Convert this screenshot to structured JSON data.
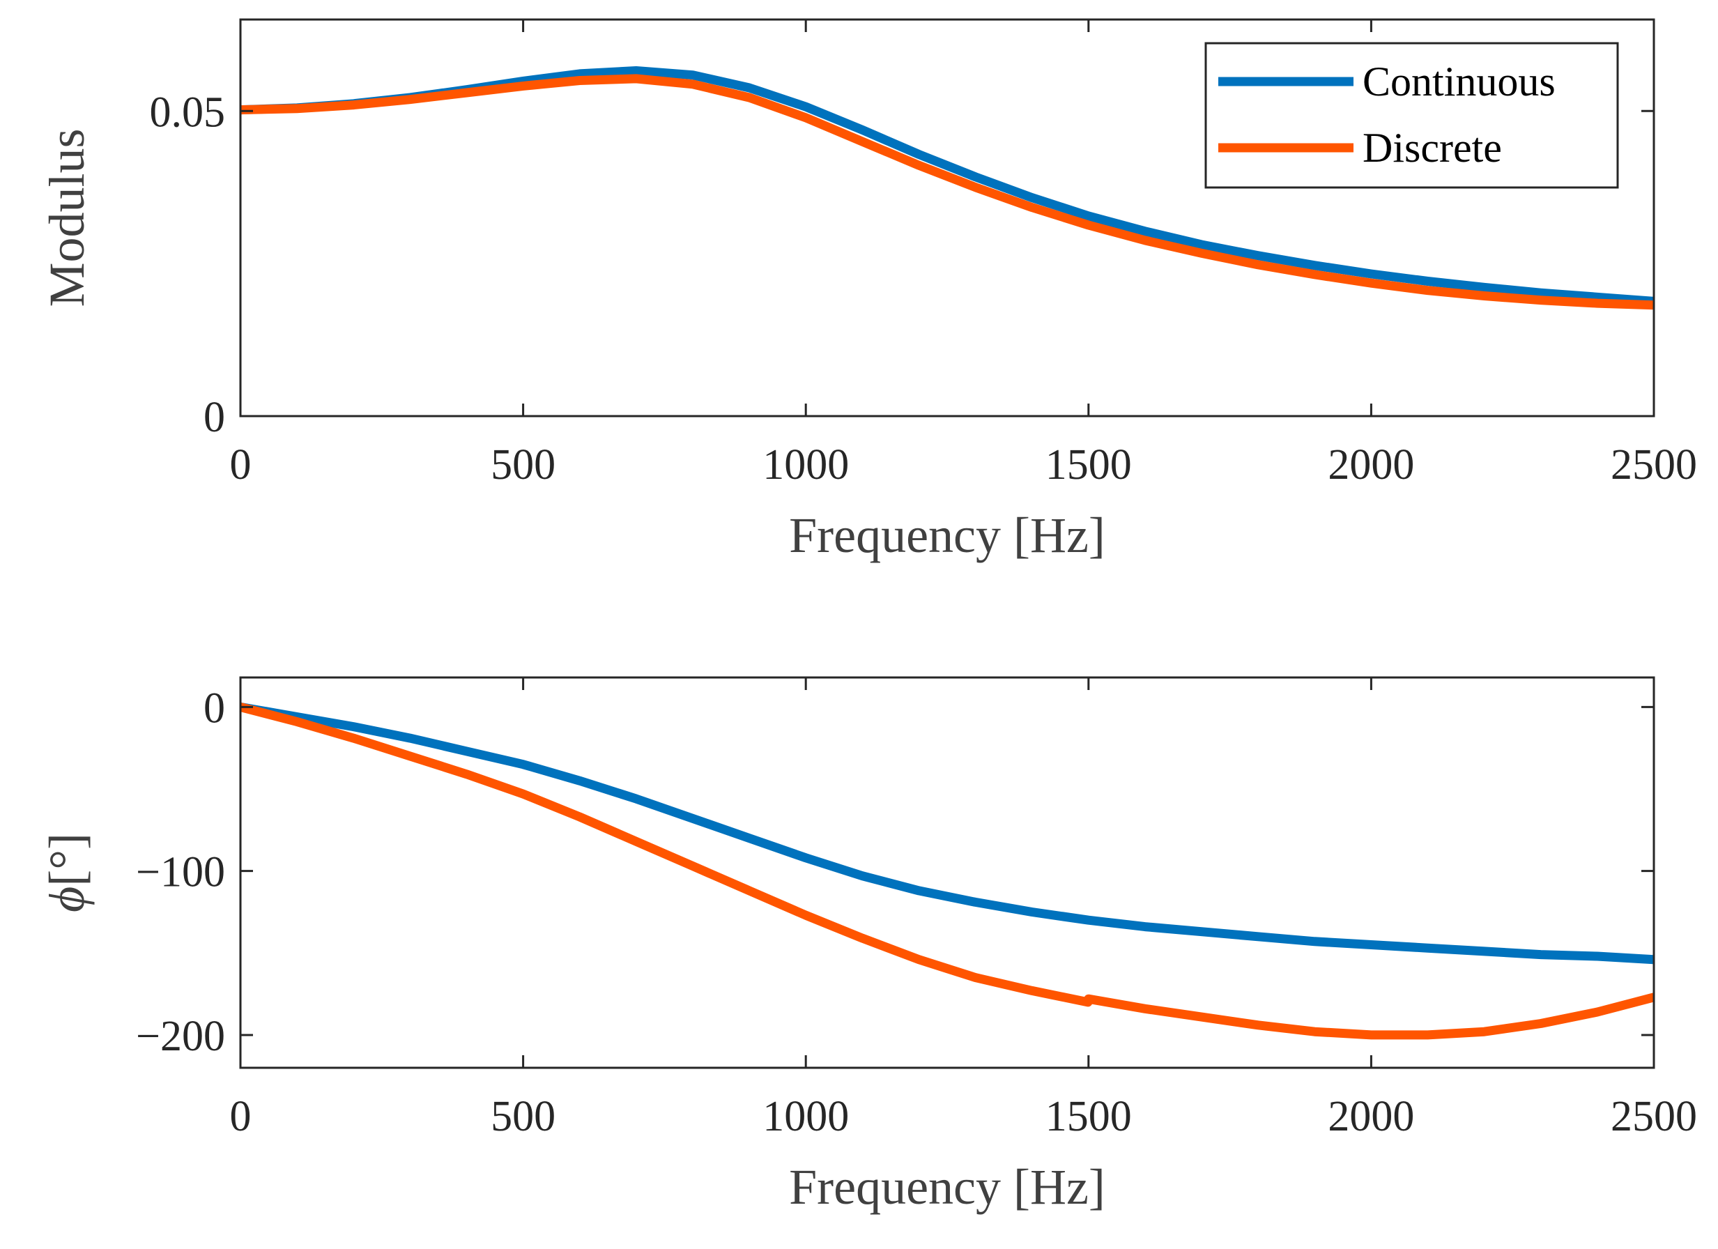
{
  "chart_data": [
    {
      "type": "line",
      "xlabel": "Frequency [Hz]",
      "ylabel": "Modulus",
      "xlim": [
        0,
        2500
      ],
      "ylim": [
        0,
        0.065
      ],
      "xticks": [
        0,
        500,
        1000,
        1500,
        2000,
        2500
      ],
      "xtick_labels": [
        "0",
        "500",
        "1000",
        "1500",
        "2000",
        "2500"
      ],
      "yticks": [
        0,
        0.05
      ],
      "ytick_labels": [
        "0",
        "0.05"
      ],
      "grid": false,
      "legend": {
        "position": "top-right",
        "entries": [
          "Continuous",
          "Discrete"
        ]
      },
      "series": [
        {
          "name": "Continuous",
          "color": "#0072BD",
          "x": [
            0,
            100,
            200,
            300,
            400,
            500,
            600,
            700,
            800,
            900,
            1000,
            1100,
            1200,
            1300,
            1400,
            1500,
            1600,
            1700,
            1800,
            1900,
            2000,
            2100,
            2200,
            2300,
            2400,
            2500
          ],
          "y": [
            0.0502,
            0.0505,
            0.0512,
            0.0522,
            0.0535,
            0.0549,
            0.0561,
            0.0566,
            0.0559,
            0.0538,
            0.0507,
            0.0469,
            0.0429,
            0.0392,
            0.0358,
            0.0328,
            0.0303,
            0.0281,
            0.0263,
            0.0247,
            0.0233,
            0.0221,
            0.0211,
            0.0202,
            0.0195,
            0.0188
          ]
        },
        {
          "name": "Discrete",
          "color": "#FF5500",
          "x": [
            0,
            100,
            200,
            300,
            400,
            500,
            600,
            700,
            800,
            900,
            1000,
            1100,
            1200,
            1300,
            1400,
            1500,
            1600,
            1700,
            1800,
            1900,
            2000,
            2100,
            2200,
            2300,
            2400,
            2500
          ],
          "y": [
            0.0502,
            0.0504,
            0.051,
            0.0519,
            0.053,
            0.0541,
            0.055,
            0.0553,
            0.0544,
            0.0522,
            0.0489,
            0.045,
            0.0411,
            0.0375,
            0.0342,
            0.0313,
            0.0288,
            0.0267,
            0.0248,
            0.0232,
            0.0218,
            0.0206,
            0.0197,
            0.019,
            0.0185,
            0.0182
          ]
        }
      ]
    },
    {
      "type": "line",
      "xlabel": "Frequency [Hz]",
      "ylabel_symbol": "ϕ",
      "ylabel_unit": "[°]",
      "xlim": [
        0,
        2500
      ],
      "ylim": [
        -220,
        18
      ],
      "xticks": [
        0,
        500,
        1000,
        1500,
        2000,
        2500
      ],
      "xtick_labels": [
        "0",
        "500",
        "1000",
        "1500",
        "2000",
        "2500"
      ],
      "yticks": [
        0,
        -100,
        -200
      ],
      "ytick_labels": [
        "0",
        "−100",
        "−200"
      ],
      "grid": false,
      "series": [
        {
          "name": "Continuous",
          "color": "#0072BD",
          "x": [
            0,
            100,
            200,
            300,
            400,
            500,
            600,
            700,
            800,
            900,
            1000,
            1100,
            1200,
            1300,
            1400,
            1500,
            1600,
            1700,
            1800,
            1900,
            2000,
            2100,
            2200,
            2300,
            2400,
            2500
          ],
          "y": [
            0,
            -6,
            -12,
            -19,
            -27,
            -35,
            -45,
            -56,
            -68,
            -80,
            -92,
            -103,
            -112,
            -119,
            -125,
            -130,
            -134,
            -137,
            -140,
            -143,
            -145,
            -147,
            -149,
            -151,
            -152,
            -154
          ]
        },
        {
          "name": "Discrete",
          "color": "#FF5500",
          "x": [
            0,
            100,
            200,
            300,
            400,
            500,
            600,
            700,
            800,
            900,
            1000,
            1100,
            1200,
            1300,
            1400,
            1499,
            1500,
            1600,
            1700,
            1800,
            1900,
            2000,
            2100,
            2200,
            2300,
            2400,
            2500
          ],
          "y": [
            0,
            -9,
            -19,
            -30,
            -41,
            -53,
            -67,
            -82,
            -97,
            -112,
            -127,
            -141,
            -154,
            -165,
            -173,
            -180,
            -178,
            -184,
            -189,
            -194,
            -198,
            -200,
            -200,
            -198,
            -193,
            -186,
            -177
          ]
        }
      ]
    }
  ]
}
